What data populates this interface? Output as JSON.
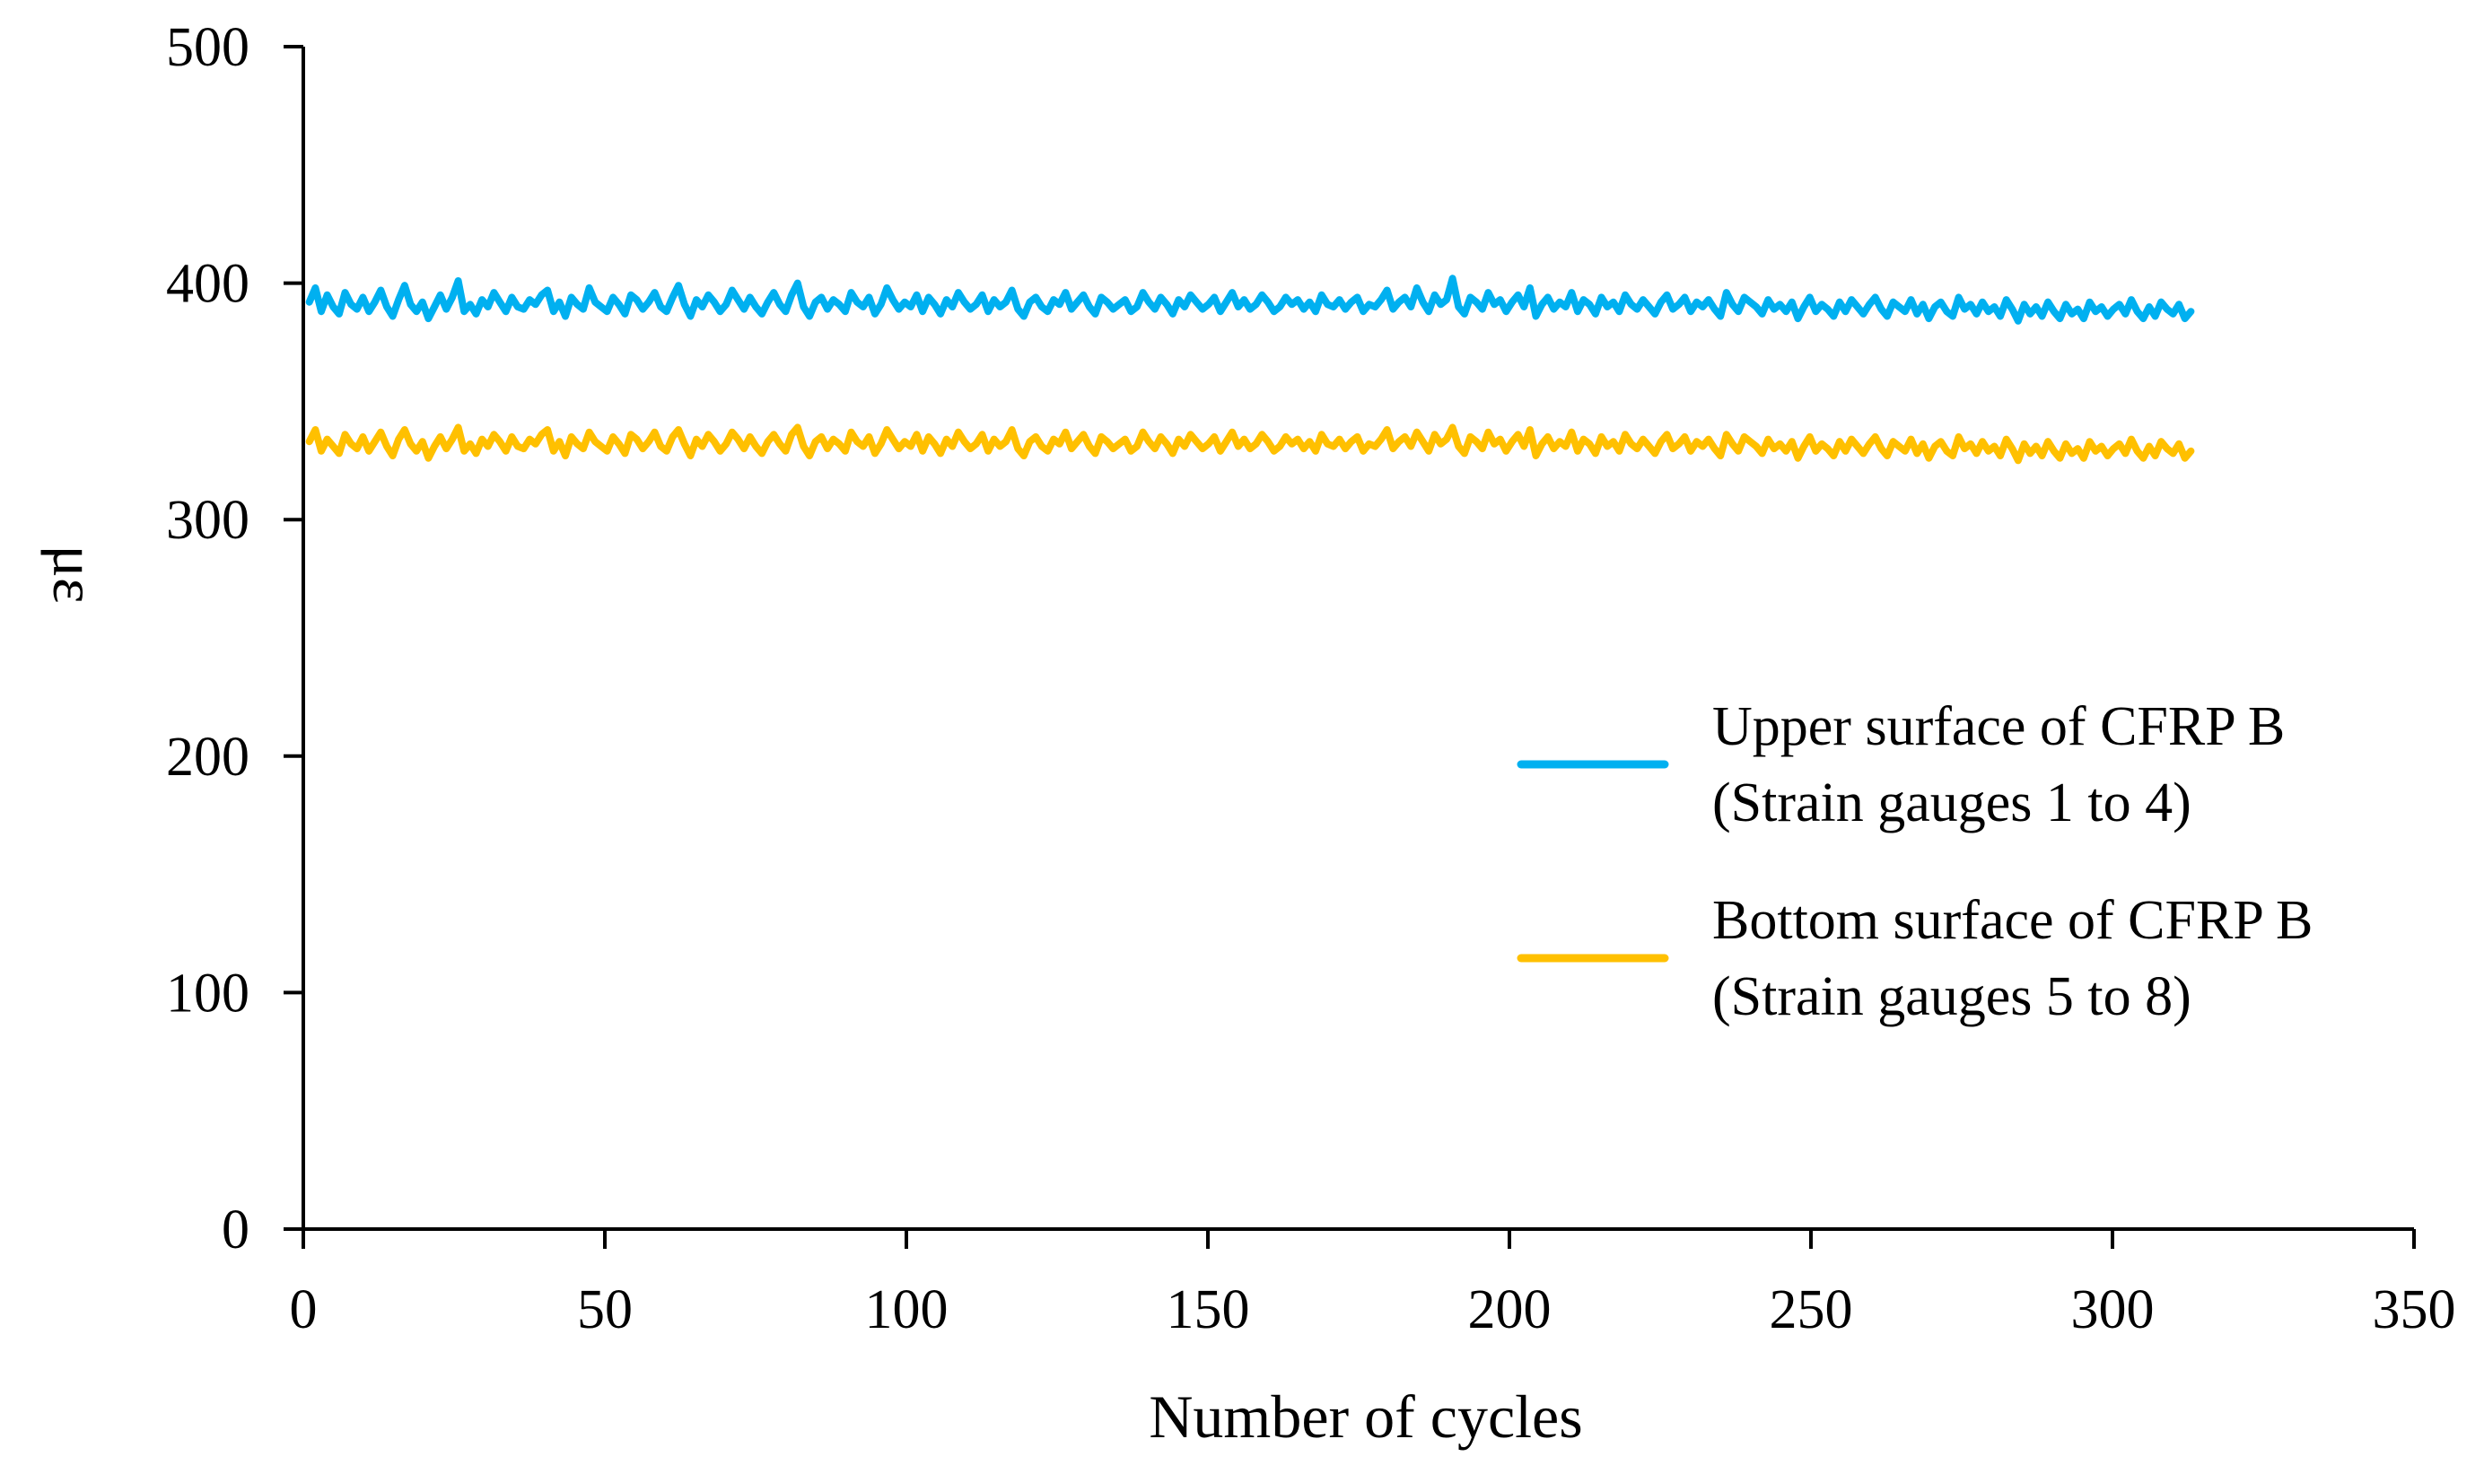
{
  "chart_data": {
    "type": "line",
    "title": "",
    "xlabel": "Number of cycles",
    "ylabel": "με",
    "xlim": [
      0,
      350
    ],
    "ylim": [
      0,
      500
    ],
    "xticks": [
      0,
      50,
      100,
      150,
      200,
      250,
      300,
      350
    ],
    "yticks": [
      0,
      100,
      200,
      300,
      400,
      500
    ],
    "grid": false,
    "legend_position": "right",
    "series": [
      {
        "name": "Upper surface of CFRP B (Strain gauges 1 to 4)",
        "legend_lines": [
          "Upper surface of CFRP B",
          "(Strain gauges 1 to 4)"
        ],
        "color": "#00b0f0",
        "x_start": 1,
        "x_end": 313,
        "values": [
          392,
          398,
          388,
          395,
          390,
          387,
          396,
          391,
          389,
          394,
          388,
          392,
          397,
          390,
          386,
          393,
          399,
          391,
          388,
          392,
          385,
          390,
          395,
          389,
          394,
          401,
          388,
          391,
          387,
          393,
          390,
          396,
          392,
          388,
          394,
          390,
          389,
          393,
          391,
          395,
          397,
          388,
          392,
          386,
          394,
          391,
          389,
          398,
          392,
          390,
          388,
          394,
          391,
          387,
          395,
          393,
          389,
          392,
          396,
          390,
          388,
          394,
          399,
          391,
          386,
          393,
          390,
          395,
          392,
          388,
          391,
          397,
          393,
          389,
          394,
          390,
          387,
          392,
          396,
          391,
          388,
          395,
          400,
          390,
          386,
          392,
          394,
          389,
          393,
          391,
          388,
          396,
          392,
          390,
          394,
          387,
          391,
          398,
          393,
          389,
          392,
          390,
          395,
          388,
          394,
          391,
          387,
          393,
          390,
          396,
          392,
          389,
          391,
          395,
          388,
          393,
          390,
          392,
          397,
          389,
          386,
          392,
          394,
          390,
          388,
          393,
          391,
          396,
          389,
          392,
          395,
          390,
          387,
          394,
          392,
          389,
          391,
          393,
          388,
          390,
          396,
          392,
          389,
          394,
          391,
          387,
          393,
          390,
          395,
          392,
          389,
          391,
          394,
          388,
          392,
          396,
          390,
          393,
          389,
          391,
          395,
          392,
          388,
          390,
          394,
          391,
          393,
          389,
          392,
          388,
          395,
          391,
          390,
          393,
          389,
          392,
          394,
          388,
          391,
          390,
          393,
          397,
          389,
          392,
          394,
          390,
          398,
          392,
          388,
          395,
          391,
          393,
          402,
          390,
          387,
          394,
          392,
          389,
          396,
          391,
          393,
          388,
          392,
          395,
          390,
          398,
          386,
          391,
          394,
          389,
          392,
          390,
          396,
          388,
          393,
          391,
          387,
          394,
          390,
          392,
          388,
          395,
          391,
          389,
          393,
          390,
          387,
          392,
          395,
          389,
          391,
          394,
          388,
          392,
          390,
          393,
          389,
          386,
          396,
          391,
          388,
          394,
          392,
          390,
          387,
          393,
          389,
          391,
          388,
          392,
          385,
          390,
          394,
          388,
          391,
          389,
          386,
          392,
          388,
          393,
          390,
          387,
          391,
          394,
          389,
          386,
          392,
          390,
          388,
          393,
          387,
          391,
          385,
          390,
          392,
          388,
          386,
          394,
          389,
          391,
          387,
          392,
          388,
          390,
          386,
          393,
          389,
          384,
          391,
          387,
          390,
          386,
          392,
          388,
          385,
          391,
          387,
          389,
          385,
          392,
          388,
          390,
          386,
          389,
          391,
          387,
          393,
          388,
          385,
          390,
          386,
          392,
          389,
          387,
          391,
          385,
          388
        ]
      },
      {
        "name": "Bottom surface of CFRP B (Strain gauges 5 to 8)",
        "legend_lines": [
          "Bottom surface of CFRP B",
          "(Strain gauges 5 to 8)"
        ],
        "color": "#ffc000",
        "x_start": 1,
        "x_end": 313,
        "values": [
          333,
          338,
          329,
          334,
          331,
          328,
          336,
          332,
          330,
          335,
          329,
          333,
          337,
          331,
          327,
          334,
          338,
          332,
          329,
          333,
          326,
          331,
          335,
          330,
          334,
          339,
          329,
          332,
          328,
          334,
          331,
          336,
          333,
          329,
          335,
          331,
          330,
          334,
          332,
          336,
          338,
          329,
          333,
          327,
          335,
          332,
          330,
          337,
          333,
          331,
          329,
          335,
          332,
          328,
          336,
          334,
          330,
          333,
          337,
          331,
          329,
          335,
          338,
          332,
          327,
          334,
          331,
          336,
          333,
          329,
          332,
          337,
          334,
          330,
          335,
          331,
          328,
          333,
          336,
          332,
          329,
          336,
          339,
          331,
          327,
          333,
          335,
          330,
          334,
          332,
          329,
          337,
          333,
          331,
          335,
          328,
          332,
          338,
          334,
          330,
          333,
          331,
          336,
          329,
          335,
          332,
          328,
          334,
          331,
          337,
          333,
          330,
          332,
          336,
          329,
          334,
          331,
          333,
          338,
          330,
          327,
          333,
          335,
          331,
          329,
          334,
          332,
          337,
          330,
          333,
          336,
          331,
          328,
          335,
          333,
          330,
          332,
          334,
          329,
          331,
          337,
          333,
          330,
          335,
          332,
          328,
          334,
          331,
          336,
          333,
          330,
          332,
          335,
          329,
          333,
          337,
          331,
          334,
          330,
          332,
          336,
          333,
          329,
          331,
          335,
          332,
          334,
          330,
          333,
          329,
          336,
          332,
          331,
          334,
          330,
          333,
          335,
          329,
          332,
          331,
          334,
          338,
          330,
          333,
          335,
          331,
          337,
          333,
          329,
          336,
          332,
          334,
          339,
          331,
          328,
          335,
          333,
          330,
          337,
          332,
          334,
          329,
          333,
          336,
          331,
          338,
          327,
          332,
          335,
          330,
          333,
          331,
          337,
          329,
          334,
          332,
          328,
          335,
          331,
          333,
          329,
          336,
          332,
          330,
          334,
          331,
          328,
          333,
          336,
          330,
          332,
          335,
          329,
          333,
          331,
          334,
          330,
          327,
          336,
          332,
          329,
          335,
          333,
          331,
          328,
          334,
          330,
          332,
          329,
          333,
          326,
          331,
          335,
          329,
          332,
          330,
          327,
          333,
          329,
          334,
          331,
          328,
          332,
          335,
          330,
          327,
          333,
          331,
          329,
          334,
          328,
          332,
          326,
          331,
          333,
          329,
          327,
          335,
          330,
          332,
          328,
          333,
          329,
          331,
          327,
          334,
          330,
          325,
          332,
          328,
          331,
          327,
          333,
          329,
          326,
          332,
          328,
          330,
          326,
          333,
          329,
          331,
          327,
          330,
          332,
          328,
          334,
          329,
          326,
          331,
          327,
          333,
          330,
          328,
          332,
          326,
          329
        ]
      }
    ]
  }
}
